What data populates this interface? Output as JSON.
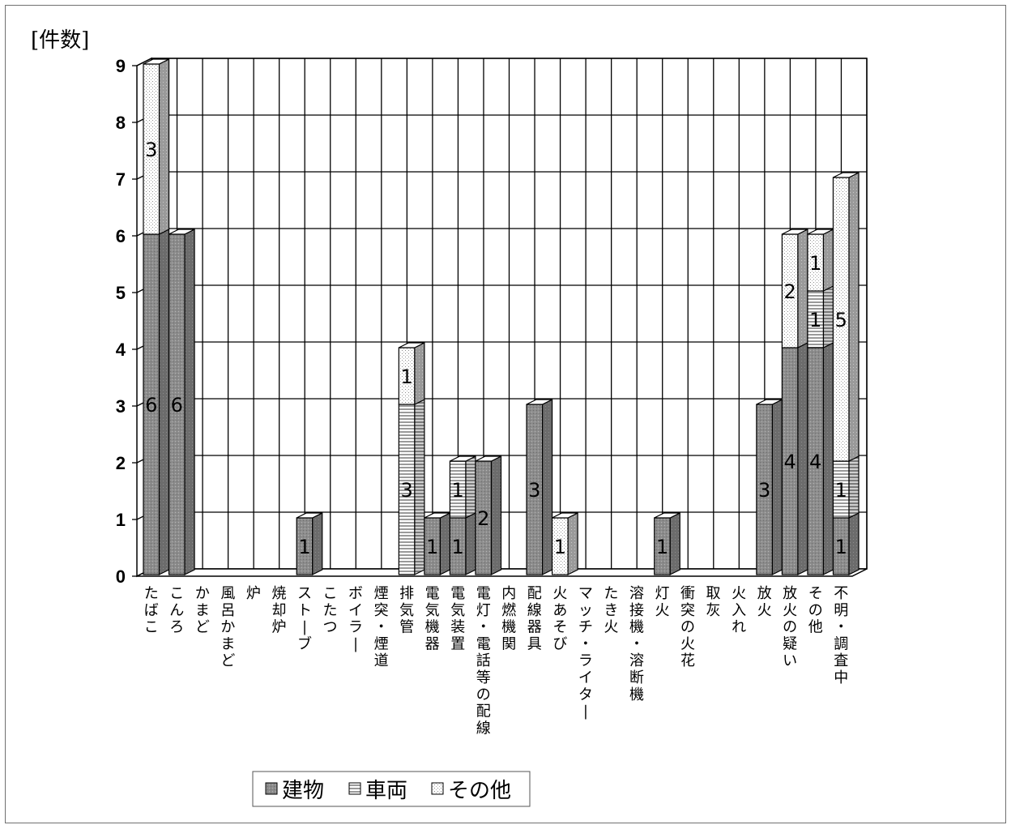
{
  "chart_data": {
    "type": "bar",
    "stacked": true,
    "style_3d": true,
    "ylabel": "[件数]",
    "ylim": [
      0,
      9
    ],
    "yticks": [
      0,
      1,
      2,
      3,
      4,
      5,
      6,
      7,
      8,
      9
    ],
    "grid": true,
    "legend_position": "bottom",
    "categories": [
      "たばこ",
      "こんろ",
      "かまど",
      "風呂かまど",
      "炉",
      "焼却炉",
      "ストーブ",
      "こたつ",
      "ボイラー",
      "煙突・煙道",
      "排気管",
      "電気機器",
      "電気装置",
      "電灯・電話等の配線",
      "内燃機関",
      "配線器具",
      "火あそび",
      "マッチ・ライター",
      "たき火",
      "溶接機・溶断機",
      "灯火",
      "衝突の火花",
      "取灰",
      "火入れ",
      "放火",
      "放火の疑い",
      "その他",
      "不明・調査中"
    ],
    "series": [
      {
        "name": "建物",
        "values": [
          6,
          6,
          0,
          0,
          0,
          0,
          1,
          0,
          0,
          0,
          0,
          1,
          1,
          2,
          0,
          3,
          0,
          0,
          0,
          0,
          1,
          0,
          0,
          0,
          3,
          4,
          4,
          1
        ]
      },
      {
        "name": "車両",
        "values": [
          0,
          0,
          0,
          0,
          0,
          0,
          0,
          0,
          0,
          0,
          3,
          0,
          1,
          0,
          0,
          0,
          0,
          0,
          0,
          0,
          0,
          0,
          0,
          0,
          0,
          0,
          1,
          1
        ]
      },
      {
        "name": "その他",
        "values": [
          3,
          0,
          0,
          0,
          0,
          0,
          0,
          0,
          0,
          0,
          1,
          0,
          0,
          0,
          0,
          0,
          1,
          0,
          0,
          0,
          0,
          0,
          0,
          0,
          0,
          2,
          1,
          5
        ]
      }
    ]
  },
  "legend": {
    "items": [
      "建物",
      "車両",
      "その他"
    ]
  }
}
